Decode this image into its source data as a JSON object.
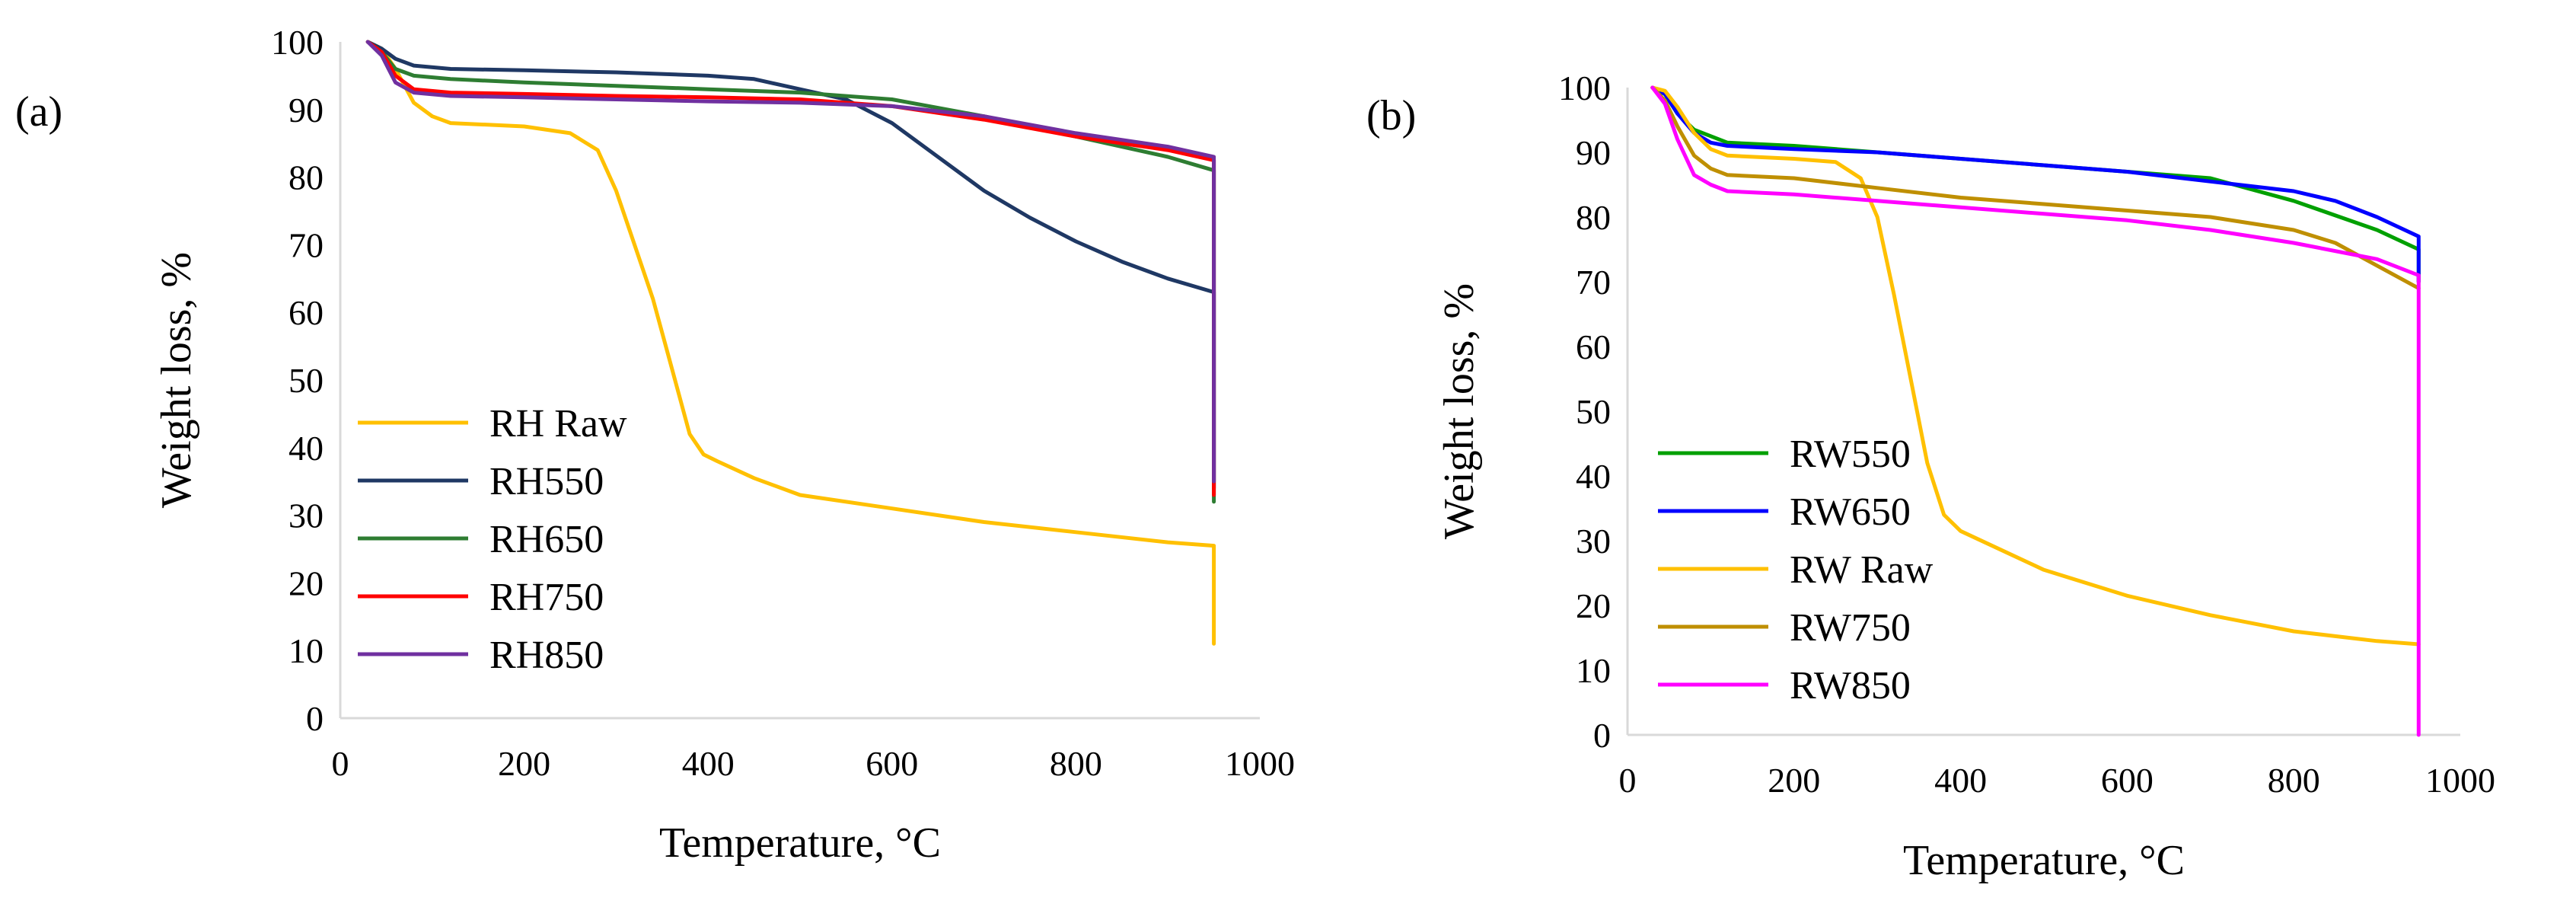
{
  "chart_data": [
    {
      "type": "line",
      "panel_label": "(a)",
      "title": "",
      "xlabel": "Temperature, °C",
      "ylabel": "Weight loss, %",
      "xlim": [
        0,
        1000
      ],
      "ylim": [
        0,
        100
      ],
      "xticks": [
        "0",
        "200",
        "400",
        "600",
        "800",
        "1000"
      ],
      "yticks": [
        "0",
        "10",
        "20",
        "30",
        "40",
        "50",
        "60",
        "70",
        "80",
        "90",
        "100"
      ],
      "grid": false,
      "legend_position": "bottom-left",
      "series": [
        {
          "name": "RH Raw",
          "color": "#FFC000",
          "x": [
            30,
            45,
            60,
            80,
            100,
            120,
            200,
            250,
            280,
            300,
            320,
            340,
            360,
            380,
            395,
            410,
            450,
            500,
            600,
            700,
            800,
            900,
            950,
            950
          ],
          "y": [
            100,
            99,
            96,
            91,
            89,
            88,
            87.5,
            86.5,
            84,
            78,
            70,
            62,
            52,
            42,
            39,
            38,
            35.5,
            33,
            31,
            29,
            27.5,
            26,
            25.5,
            11
          ]
        },
        {
          "name": "RH550",
          "color": "#1F3864",
          "x": [
            30,
            45,
            60,
            80,
            120,
            200,
            300,
            400,
            450,
            500,
            550,
            600,
            650,
            700,
            750,
            800,
            850,
            900,
            950,
            950
          ],
          "y": [
            100,
            99,
            97.5,
            96.5,
            96,
            95.8,
            95.5,
            95,
            94.5,
            93,
            91.5,
            88,
            83,
            78,
            74,
            70.5,
            67.5,
            65,
            63,
            34
          ]
        },
        {
          "name": "RH650",
          "color": "#2E7D32",
          "x": [
            30,
            45,
            60,
            80,
            120,
            200,
            300,
            400,
            500,
            600,
            700,
            800,
            900,
            950,
            950
          ],
          "y": [
            100,
            98.5,
            96,
            95,
            94.5,
            94,
            93.5,
            93,
            92.5,
            91.5,
            89,
            86,
            83,
            81,
            32
          ]
        },
        {
          "name": "RH750",
          "color": "#FF0000",
          "x": [
            30,
            45,
            60,
            80,
            120,
            200,
            300,
            400,
            500,
            600,
            700,
            800,
            900,
            950,
            950
          ],
          "y": [
            100,
            98.5,
            95,
            93,
            92.5,
            92.3,
            92,
            91.8,
            91.5,
            90.5,
            88.5,
            86,
            84,
            82.5,
            33
          ]
        },
        {
          "name": "RH850",
          "color": "#7030A0",
          "x": [
            30,
            45,
            60,
            80,
            120,
            200,
            300,
            400,
            500,
            600,
            700,
            800,
            900,
            950,
            950
          ],
          "y": [
            100,
            98,
            94,
            92.5,
            92,
            91.8,
            91.5,
            91.2,
            91,
            90.5,
            89,
            86.5,
            84.5,
            83,
            35
          ]
        }
      ]
    },
    {
      "type": "line",
      "panel_label": "(b)",
      "title": "",
      "xlabel": "Temperature, °C",
      "ylabel": "Weight loss, %",
      "xlim": [
        0,
        1000
      ],
      "ylim": [
        0,
        100
      ],
      "xticks": [
        "0",
        "200",
        "400",
        "600",
        "800",
        "1000"
      ],
      "yticks": [
        "0",
        "10",
        "20",
        "30",
        "40",
        "50",
        "60",
        "70",
        "80",
        "90",
        "100"
      ],
      "grid": false,
      "legend_position": "bottom-left",
      "series": [
        {
          "name": "RW550",
          "color": "#00A000",
          "x": [
            30,
            45,
            60,
            80,
            100,
            120,
            200,
            300,
            400,
            500,
            600,
            700,
            800,
            900,
            950,
            950
          ],
          "y": [
            100,
            99,
            96,
            93.5,
            92.5,
            91.5,
            91,
            90,
            89,
            88,
            87,
            86,
            82.5,
            78,
            75,
            70
          ]
        },
        {
          "name": "RW650",
          "color": "#0000FF",
          "x": [
            30,
            45,
            60,
            80,
            100,
            120,
            200,
            300,
            400,
            500,
            600,
            700,
            800,
            850,
            900,
            950,
            950
          ],
          "y": [
            100,
            99,
            96,
            93,
            91.5,
            91,
            90.5,
            90,
            89,
            88,
            87,
            85.5,
            84,
            82.5,
            80,
            77,
            70
          ]
        },
        {
          "name": "RW Raw",
          "color": "#FFC000",
          "x": [
            30,
            45,
            60,
            80,
            100,
            120,
            200,
            250,
            280,
            300,
            320,
            340,
            360,
            380,
            400,
            450,
            500,
            600,
            700,
            800,
            900,
            950
          ],
          "y": [
            100,
            99.5,
            97,
            93,
            90.5,
            89.5,
            89,
            88.5,
            86,
            80,
            68,
            55,
            42,
            34,
            31.5,
            28.5,
            25.5,
            21.5,
            18.5,
            16,
            14.5,
            14
          ]
        },
        {
          "name": "RW750",
          "color": "#BF8F00",
          "x": [
            30,
            45,
            60,
            80,
            100,
            120,
            200,
            300,
            400,
            500,
            600,
            700,
            800,
            850,
            900,
            950
          ],
          "y": [
            100,
            98,
            94,
            89.5,
            87.5,
            86.5,
            86,
            84.5,
            83,
            82,
            81,
            80,
            78,
            76,
            72.5,
            69
          ]
        },
        {
          "name": "RW850",
          "color": "#FF00FF",
          "x": [
            30,
            45,
            60,
            80,
            100,
            120,
            200,
            300,
            400,
            500,
            600,
            700,
            800,
            900,
            950,
            950
          ],
          "y": [
            100,
            97.5,
            92,
            86.5,
            85,
            84,
            83.5,
            82.5,
            81.5,
            80.5,
            79.5,
            78,
            76,
            73.5,
            71,
            0
          ]
        }
      ]
    }
  ]
}
